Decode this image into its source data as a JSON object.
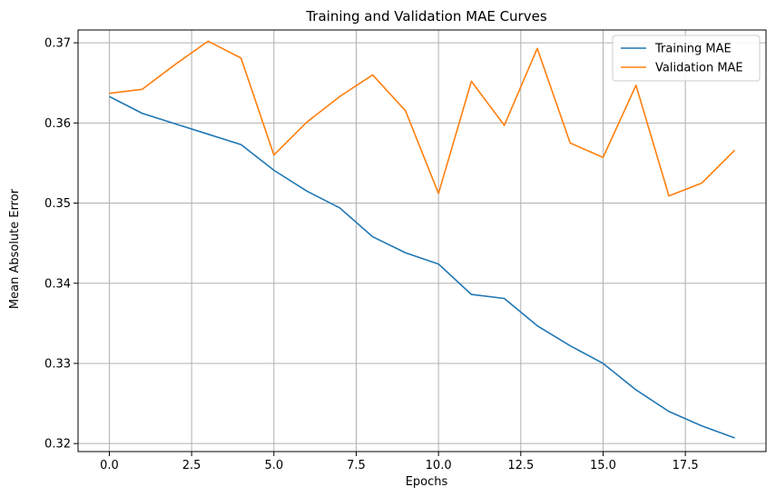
{
  "chart_data": {
    "type": "line",
    "title": "Training and Validation MAE Curves",
    "xlabel": "Epochs",
    "ylabel": "Mean Absolute Error",
    "x": [
      0,
      1,
      2,
      3,
      4,
      5,
      6,
      7,
      8,
      9,
      10,
      11,
      12,
      13,
      14,
      15,
      16,
      17,
      18,
      19
    ],
    "series": [
      {
        "name": "Training MAE",
        "color": "#1f77b4",
        "values": [
          0.3633,
          0.3612,
          0.3599,
          0.3586,
          0.3573,
          0.3541,
          0.3515,
          0.3494,
          0.3458,
          0.3438,
          0.3424,
          0.3386,
          0.3381,
          0.3347,
          0.3322,
          0.33,
          0.3267,
          0.324,
          0.3222,
          0.3207
        ]
      },
      {
        "name": "Validation MAE",
        "color": "#ff7f0e",
        "values": [
          0.3637,
          0.3642,
          0.3673,
          0.3702,
          0.3681,
          0.356,
          0.3601,
          0.3633,
          0.366,
          0.3615,
          0.3512,
          0.3652,
          0.3597,
          0.3693,
          0.3575,
          0.3557,
          0.3647,
          0.3509,
          0.3525,
          0.3566
        ]
      }
    ],
    "xlim": [
      -0.95,
      19.95
    ],
    "ylim": [
      0.319,
      0.3716
    ],
    "xticks": [
      0,
      2.5,
      5,
      7.5,
      10,
      12.5,
      15,
      17.5
    ],
    "xtick_labels": [
      "0.0",
      "2.5",
      "5.0",
      "7.5",
      "10.0",
      "12.5",
      "15.0",
      "17.5"
    ],
    "yticks": [
      0.32,
      0.33,
      0.34,
      0.35,
      0.36,
      0.37
    ],
    "ytick_labels": [
      "0.32",
      "0.33",
      "0.34",
      "0.35",
      "0.36",
      "0.37"
    ],
    "grid": true,
    "legend_position": "top-right"
  }
}
